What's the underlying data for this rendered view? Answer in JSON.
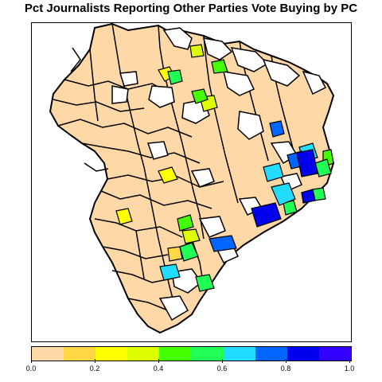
{
  "title": "Pct Journalists Reporting Other Parties Vote Buying by PC",
  "legend": {
    "colors": [
      "#FFD8A8",
      "#FFD744",
      "#FFFF00",
      "#DDFF00",
      "#44FF00",
      "#22FF55",
      "#22DDFF",
      "#0066FF",
      "#0000EE",
      "#3300FF"
    ],
    "ticks": [
      "0.0",
      "0.2",
      "0.4",
      "0.6",
      "0.8",
      "1.0"
    ],
    "range": [
      0,
      1
    ]
  },
  "map_data": {
    "no_data_color": "#FFFFFF",
    "base_fill_value": 0.0
  }
}
